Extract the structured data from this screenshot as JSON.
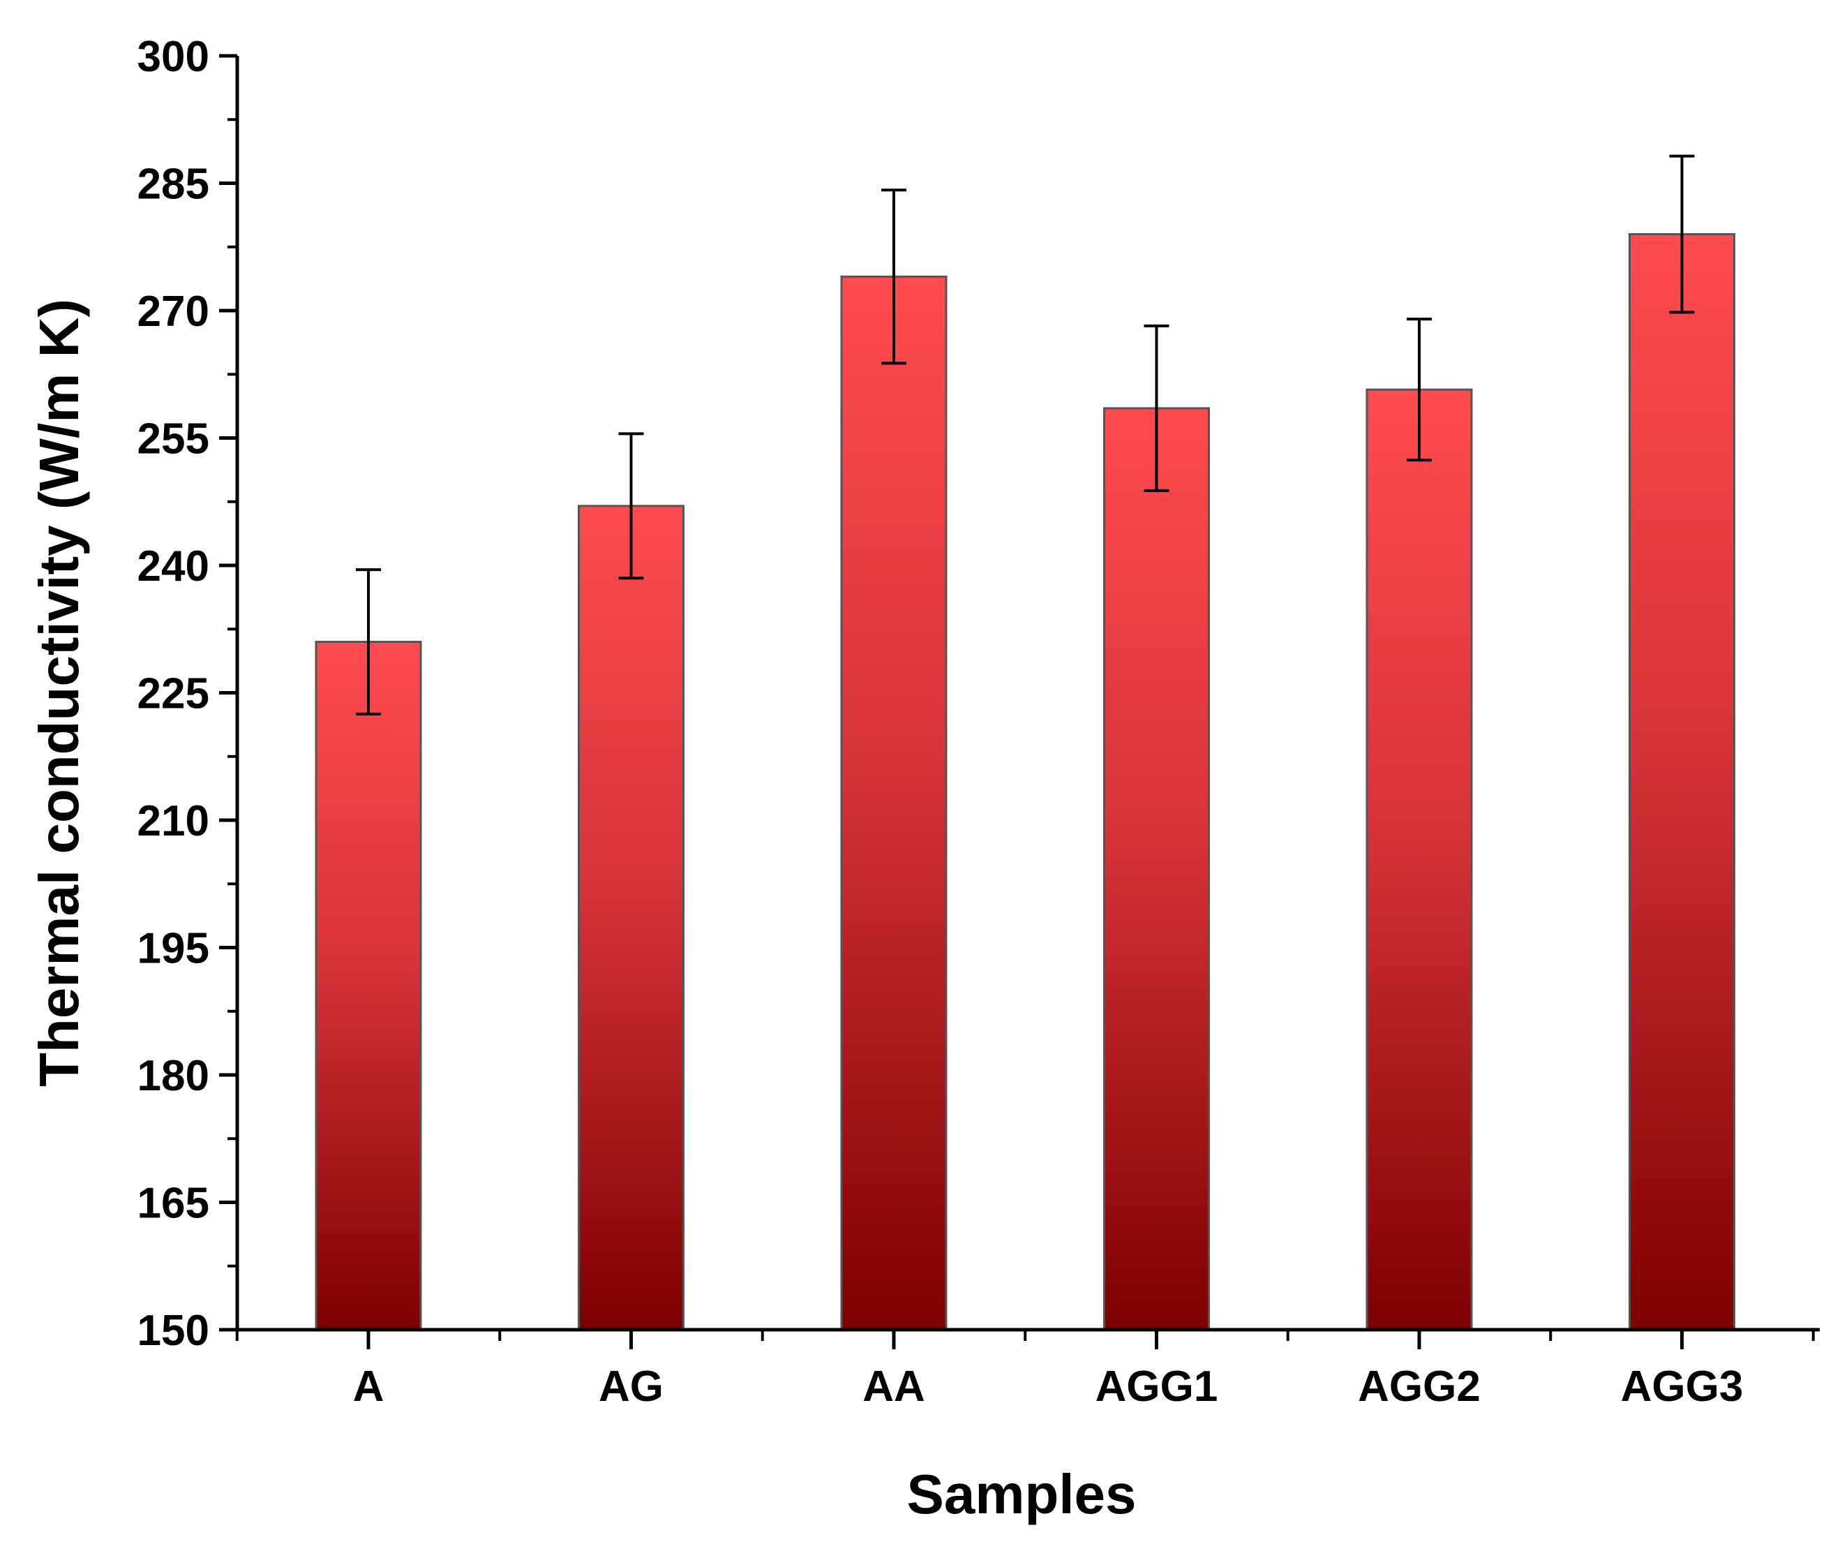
{
  "chart_data": {
    "type": "bar",
    "title": "",
    "xlabel": "Samples",
    "ylabel": "Thermal conductivity (W/m K)",
    "ylim": [
      150,
      300
    ],
    "yticks": [
      150,
      165,
      180,
      195,
      210,
      225,
      240,
      255,
      270,
      285,
      300
    ],
    "categories": [
      "A",
      "AG",
      "AA",
      "AGG1",
      "AGG2",
      "AGG3"
    ],
    "values": [
      231,
      247,
      274,
      258.5,
      260.7,
      279
    ],
    "errors": [
      8.5,
      8.5,
      10.2,
      9.7,
      8.3,
      9.2
    ],
    "grid": false,
    "legend": "none",
    "colors": {
      "bar_top": "#ff4b4f",
      "bar_mid": "#d8353a",
      "bar_bottom": "#7e0000",
      "bar_edge": "#555555",
      "axis": "#000000"
    }
  }
}
